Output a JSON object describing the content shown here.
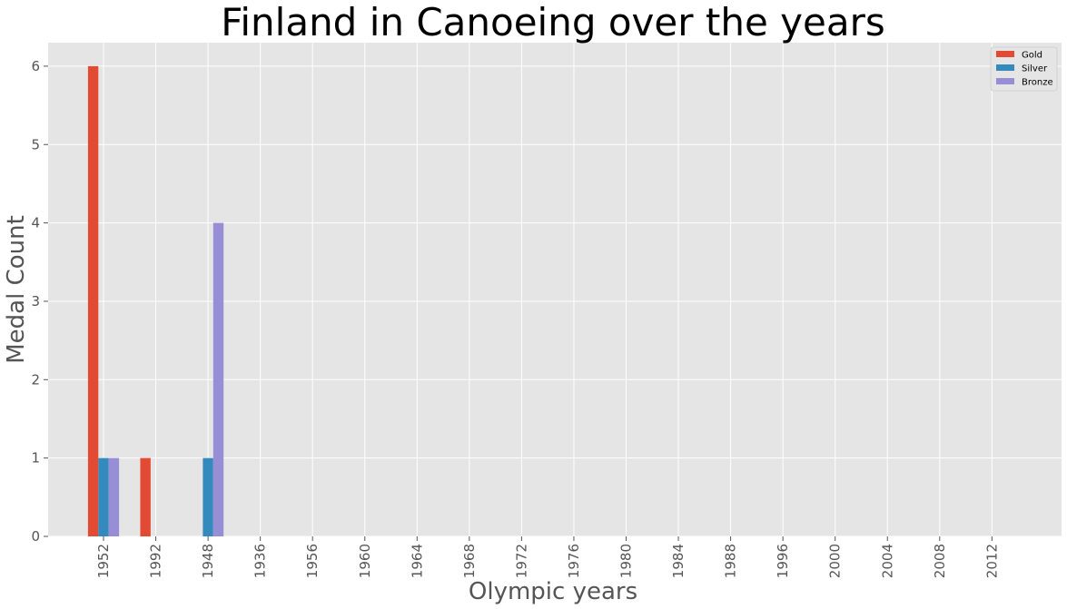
{
  "chart_data": {
    "type": "bar",
    "title": "Finland in Canoeing over the years",
    "xlabel": "Olympic years",
    "ylabel": "Medal Count",
    "categories": [
      "1952",
      "1992",
      "1948",
      "1936",
      "1956",
      "1960",
      "1964",
      "1968",
      "1972",
      "1976",
      "1980",
      "1984",
      "1988",
      "1996",
      "2000",
      "2004",
      "2008",
      "2012"
    ],
    "series": [
      {
        "name": "Gold",
        "color": "#E24A33",
        "values": [
          6,
          1,
          0,
          0,
          0,
          0,
          0,
          0,
          0,
          0,
          0,
          0,
          0,
          0,
          0,
          0,
          0,
          0
        ]
      },
      {
        "name": "Silver",
        "color": "#348ABD",
        "values": [
          1,
          0,
          1,
          0,
          0,
          0,
          0,
          0,
          0,
          0,
          0,
          0,
          0,
          0,
          0,
          0,
          0,
          0
        ]
      },
      {
        "name": "Bronze",
        "color": "#988ED5",
        "values": [
          1,
          0,
          4,
          0,
          0,
          0,
          0,
          0,
          0,
          0,
          0,
          0,
          0,
          0,
          0,
          0,
          0,
          0
        ]
      }
    ],
    "ylim": [
      0,
      6.3
    ],
    "yticks": [
      0,
      1,
      2,
      3,
      4,
      5,
      6
    ],
    "grid": true,
    "legend": "top-right",
    "background": "#E5E5E5",
    "grid_color": "#FFFFFF"
  }
}
